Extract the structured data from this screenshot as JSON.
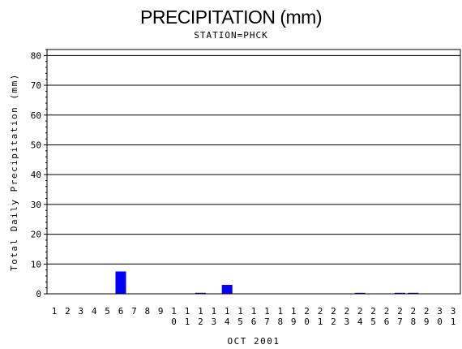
{
  "chart_data": {
    "type": "bar",
    "title": "PRECIPITATION (mm)",
    "subtitle": "STATION=PHCK",
    "xlabel": "OCT 2001",
    "ylabel": "Total Daily Precipitation (mm)",
    "ylim": [
      0,
      82
    ],
    "yticks": [
      0,
      10,
      20,
      30,
      40,
      50,
      60,
      70,
      80
    ],
    "grid": true,
    "bar_color": "#0000ff",
    "categories": [
      "1",
      "2",
      "3",
      "4",
      "5",
      "6",
      "7",
      "8",
      "9",
      "10",
      "11",
      "12",
      "13",
      "14",
      "15",
      "16",
      "17",
      "18",
      "19",
      "20",
      "21",
      "22",
      "23",
      "24",
      "25",
      "26",
      "27",
      "28",
      "29",
      "30",
      "31"
    ],
    "values": [
      0,
      0,
      0,
      0,
      0,
      7.5,
      0,
      0,
      0,
      0,
      0,
      0.3,
      0,
      3,
      0,
      0,
      0,
      0,
      0,
      0,
      0,
      0,
      0,
      0.3,
      0,
      0,
      0.3,
      0.3,
      0,
      0,
      0
    ]
  }
}
